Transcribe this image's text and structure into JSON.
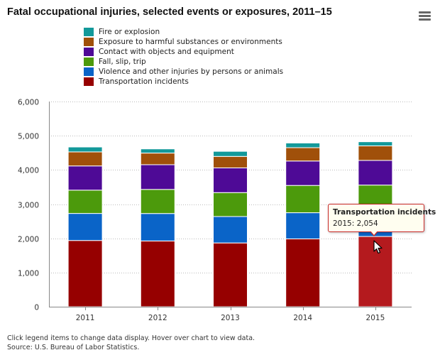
{
  "chart_title": "Fatal occupational injuries, selected events or exposures, 2011–15",
  "menu": {
    "icon": "hamburger-menu-icon"
  },
  "legend": [
    {
      "label": "Fire or explosion",
      "color": "#12999a"
    },
    {
      "label": "Exposure to harmful substances or environments",
      "color": "#a0500a"
    },
    {
      "label": "Contact with objects and equipment",
      "color": "#4e0a96"
    },
    {
      "label": "Fall, slip, trip",
      "color": "#4c9a0c"
    },
    {
      "label": "Violence and other injuries by persons or animals",
      "color": "#0a64c8"
    },
    {
      "label": "Transportation incidents",
      "color": "#960000"
    }
  ],
  "chart_data": {
    "type": "bar",
    "stacked": true,
    "title": "Fatal occupational injuries, selected events or exposures, 2011–15",
    "categories": [
      "2011",
      "2012",
      "2013",
      "2014",
      "2015"
    ],
    "ylim": [
      0,
      6000
    ],
    "yticks": [
      "0",
      "1,000",
      "2,000",
      "3,000",
      "4,000",
      "5,000",
      "6,000"
    ],
    "ytick_values": [
      0,
      1000,
      2000,
      3000,
      4000,
      5000,
      6000
    ],
    "grid": "horizontal dotted",
    "legend_position": "top",
    "series": [
      {
        "name": "Transportation incidents",
        "color": "#960000",
        "values": [
          1937,
          1923,
          1865,
          1984,
          2054
        ]
      },
      {
        "name": "Violence and other injuries by persons or animals",
        "color": "#0a64c8",
        "values": [
          791,
          803,
          773,
          765,
          703
        ]
      },
      {
        "name": "Fall, slip, trip",
        "color": "#4c9a0c",
        "values": [
          681,
          704,
          699,
          797,
          800
        ]
      },
      {
        "name": "Contact with objects and equipment",
        "color": "#4e0a96",
        "values": [
          708,
          723,
          723,
          715,
          722
        ]
      },
      {
        "name": "Exposure to harmful substances or environments",
        "color": "#a0500a",
        "values": [
          410,
          340,
          335,
          390,
          424
        ]
      },
      {
        "name": "Fire or explosion",
        "color": "#12999a",
        "values": [
          144,
          122,
          149,
          137,
          121
        ]
      }
    ],
    "highlight": {
      "series": "Transportation incidents",
      "category": "2015",
      "color": "#b41a1e"
    }
  },
  "tooltip": {
    "title": "Transportation incidents",
    "text": "2015: 2,054"
  },
  "footnote": {
    "line1": "Click legend items to change data display. Hover over chart to view data.",
    "line2": "Source: U.S. Bureau of Labor Statistics."
  }
}
